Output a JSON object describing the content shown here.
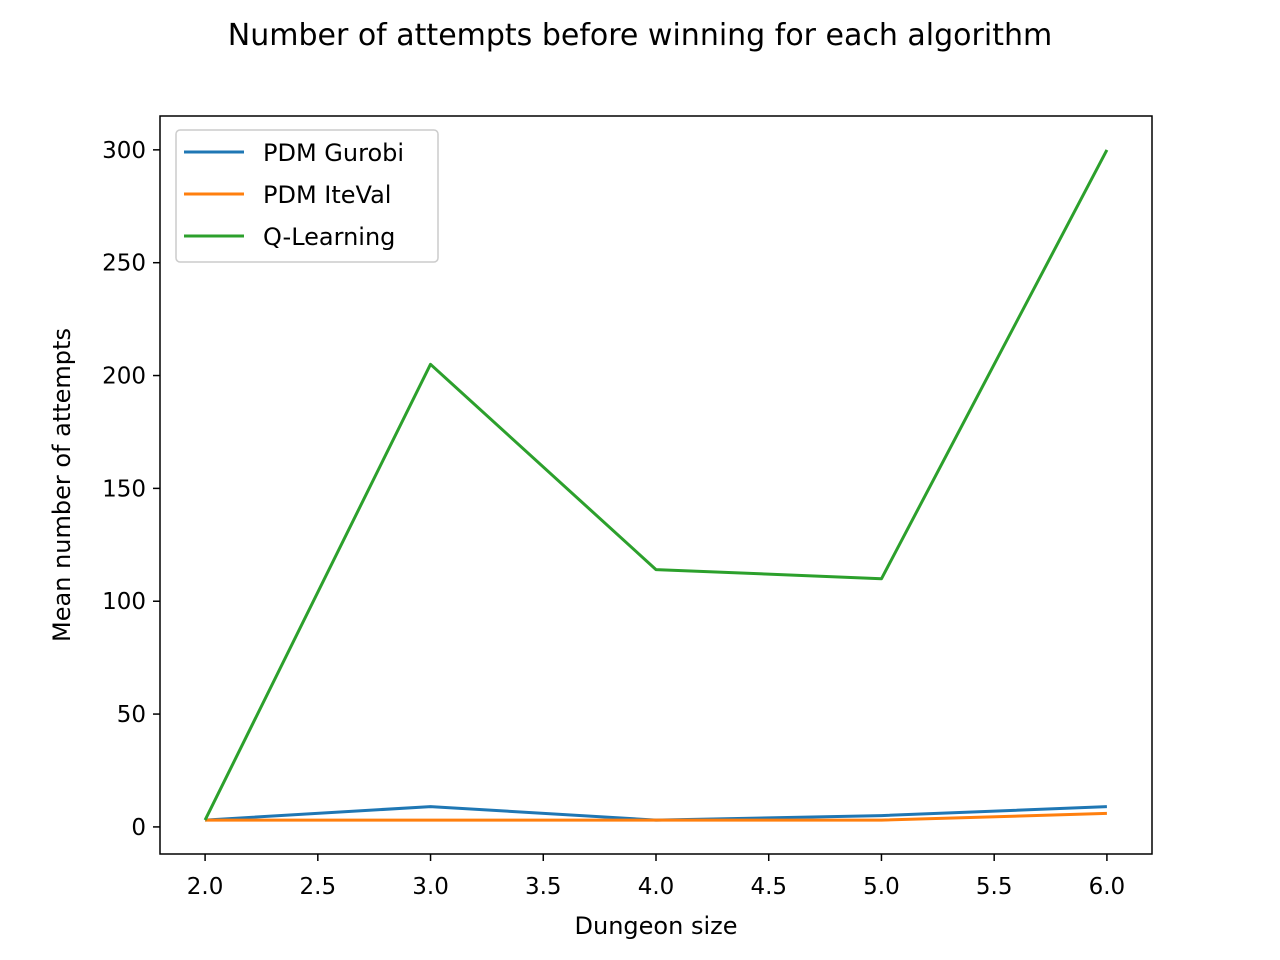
{
  "chart_data": {
    "type": "line",
    "title": "Number of attempts before winning for each algorithm",
    "xlabel": "Dungeon size",
    "ylabel": "Mean number of attempts",
    "x": [
      2.0,
      3.0,
      4.0,
      5.0,
      6.0
    ],
    "xlim": [
      1.8,
      6.2
    ],
    "ylim": [
      -12,
      315
    ],
    "xticks": [
      "2.0",
      "2.5",
      "3.0",
      "3.5",
      "4.0",
      "4.5",
      "5.0",
      "5.5",
      "6.0"
    ],
    "yticks": [
      "0",
      "50",
      "100",
      "150",
      "200",
      "250",
      "300"
    ],
    "grid": false,
    "legend_position": "top-left",
    "series": [
      {
        "name": "PDM Gurobi",
        "color": "#1f77b4",
        "values": [
          3,
          9,
          3,
          5,
          9
        ]
      },
      {
        "name": "PDM IteVal",
        "color": "#ff7f0e",
        "values": [
          3,
          3,
          3,
          3,
          6
        ]
      },
      {
        "name": "Q-Learning",
        "color": "#2ca02c",
        "values": [
          3,
          205,
          114,
          110,
          300
        ]
      }
    ]
  }
}
